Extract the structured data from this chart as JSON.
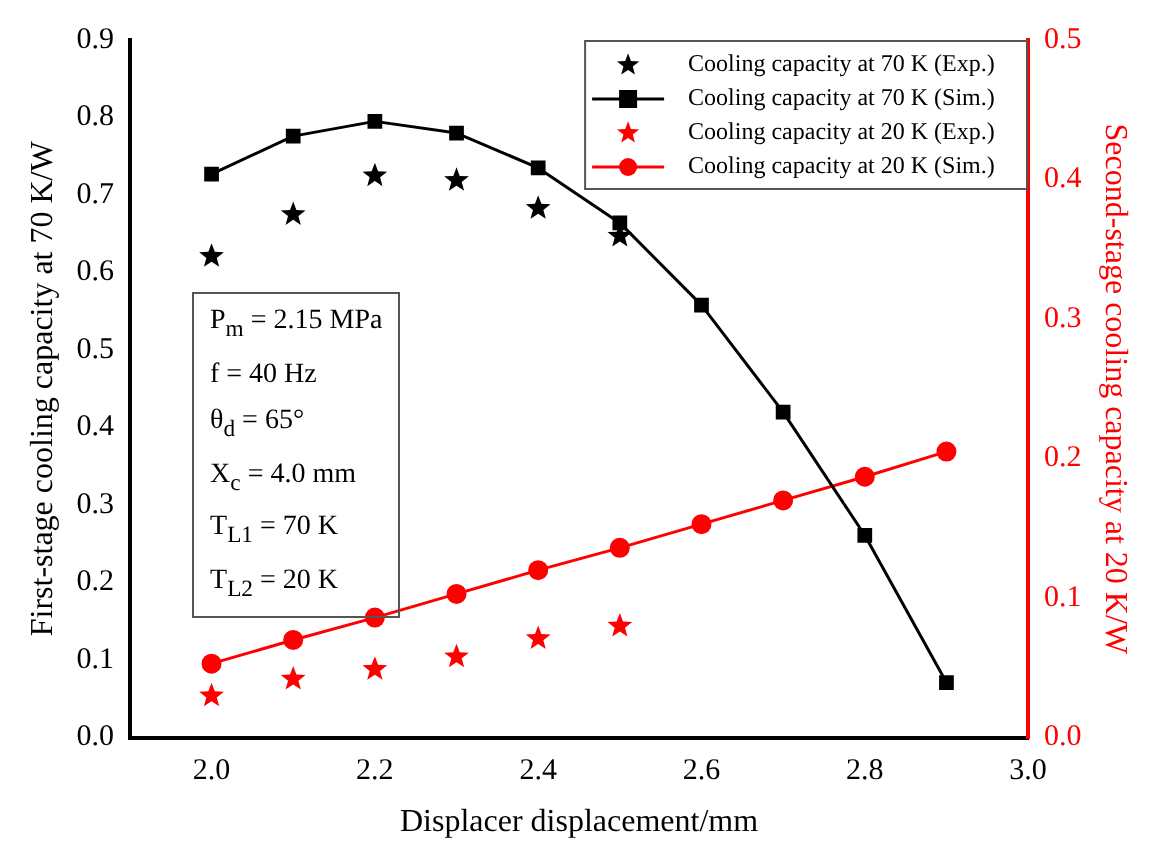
{
  "chart_data": {
    "type": "line",
    "xlabel": "Displacer displacement/mm",
    "ylabel": "First-stage cooling capacity at 70 K/W",
    "y2label": "Second-stage cooling capacity at 20 K/W",
    "xlim": [
      1.9,
      3.0
    ],
    "xticks": [
      {
        "value": 2.0,
        "label": "2.0"
      },
      2.2,
      2.4,
      2.6,
      2.8,
      {
        "value": 3.0,
        "label": "3.0"
      }
    ],
    "ylim": [
      0,
      0.9
    ],
    "yticks": [
      {
        "value": 0,
        "label": "0.0"
      },
      0.1,
      0.2,
      0.3,
      0.4,
      0.5,
      0.6,
      0.7,
      0.8,
      0.9
    ],
    "y2lim": [
      0,
      0.5
    ],
    "y2ticks": [
      {
        "value": 0,
        "label": "0.0"
      },
      0.1,
      0.2,
      0.3,
      0.4,
      0.5
    ],
    "grid": false,
    "legend": "top right",
    "line_style": "solid",
    "series": [
      {
        "name": "Cooling capacity at 70 K (Exp.)",
        "type": "scatter",
        "marker": "star",
        "color": "#000000",
        "x": [
          2.0,
          2.1,
          2.2,
          2.3,
          2.4,
          2.5
        ],
        "values": [
          0.621,
          0.675,
          0.725,
          0.719,
          0.683,
          0.647
        ]
      },
      {
        "name": "Cooling capacity at 70 K (Sim.)",
        "type": "line",
        "marker": "square",
        "color": "#000000",
        "x": [
          2.0,
          2.1,
          2.2,
          2.3,
          2.4,
          2.5,
          2.6,
          2.7,
          2.8,
          2.9
        ],
        "values": [
          0.727,
          0.776,
          0.795,
          0.78,
          0.735,
          0.664,
          0.558,
          0.42,
          0.261,
          0.071
        ]
      },
      {
        "name": "Cooling capacity at 20 K (Exp.)",
        "type": "scatter",
        "marker": "star",
        "axis": "y2",
        "color": "#ff0000",
        "x": [
          2.0,
          2.1,
          2.2,
          2.3,
          2.4,
          2.5
        ],
        "values": [
          0.03,
          0.042,
          0.049,
          0.058,
          0.071,
          0.08
        ]
      },
      {
        "name": "Cooling capacity at 20 K (Sim.)",
        "type": "line",
        "marker": "circle",
        "axis": "y2",
        "color": "#ff0000",
        "x": [
          2.0,
          2.1,
          2.2,
          2.3,
          2.4,
          2.5,
          2.6,
          2.7,
          2.8,
          2.9
        ],
        "values": [
          0.053,
          0.07,
          0.086,
          0.103,
          0.12,
          0.136,
          0.153,
          0.17,
          0.187,
          0.205
        ]
      }
    ],
    "annotations": [
      "P$_{m}$ = 2.15 MPa",
      "f = 40 Hz",
      "θ$_{d}$ = 65°",
      "X$_{c}$ = 4.0 mm",
      "T$_{L1}$ = 70 K",
      "T$_{L2}$ = 20 K"
    ]
  }
}
